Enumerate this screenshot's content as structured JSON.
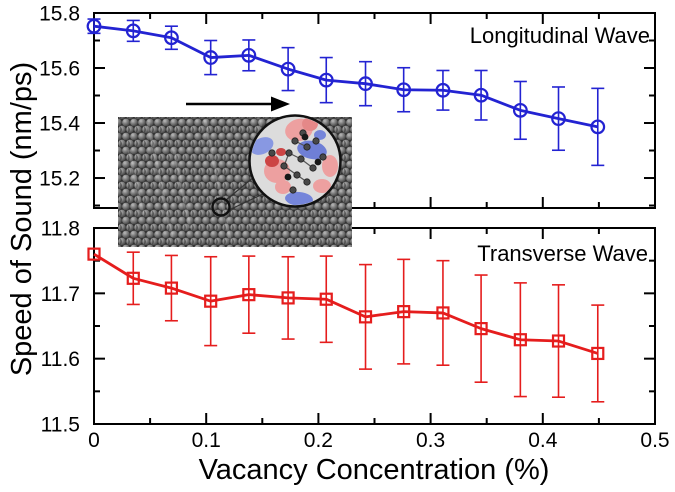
{
  "figure": {
    "background": "#ffffff",
    "axis_color": "#000000"
  },
  "chart_data": {
    "type": "line",
    "title": "",
    "xlabel": "Vacancy Concentration (%)",
    "ylabel": "Speed of Sound (nm/ps)",
    "xlim": [
      0,
      0.5
    ],
    "x_ticks": {
      "major": [
        0,
        0.1,
        0.2,
        0.3,
        0.4,
        0.5
      ],
      "labels": [
        "0",
        "0.1",
        "0.2",
        "0.3",
        "0.4",
        "0.5"
      ],
      "minor": [
        0.05,
        0.15,
        0.25,
        0.35,
        0.45
      ]
    },
    "x": [
      0,
      0.035,
      0.069,
      0.104,
      0.138,
      0.173,
      0.207,
      0.242,
      0.276,
      0.311,
      0.345,
      0.38,
      0.414,
      0.449
    ],
    "panels": [
      {
        "label": "Longitudinal Wave",
        "marker": "circle",
        "color": "#2323d2",
        "ylim": [
          15.091,
          15.8
        ],
        "y_ticks": {
          "major": [
            15.8,
            15.6,
            15.4,
            15.2
          ],
          "labels": [
            "15.8",
            "15.6",
            "15.4",
            "15.2"
          ],
          "minor": [
            15.7,
            15.5,
            15.3,
            15.1
          ]
        },
        "y": [
          15.752,
          15.735,
          15.71,
          15.638,
          15.646,
          15.596,
          15.556,
          15.543,
          15.521,
          15.519,
          15.501,
          15.446,
          15.416,
          15.386
        ],
        "yerr": [
          0.026,
          0.038,
          0.042,
          0.062,
          0.056,
          0.078,
          0.082,
          0.08,
          0.08,
          0.072,
          0.09,
          0.105,
          0.115,
          0.14
        ]
      },
      {
        "label": "Transverse Wave",
        "marker": "square",
        "color": "#e51d1d",
        "ylim": [
          11.5,
          11.8
        ],
        "y_ticks": {
          "major": [
            11.8,
            11.7,
            11.6,
            11.5
          ],
          "labels": [
            "11.8",
            "11.7",
            "11.6",
            "11.5"
          ],
          "minor": [
            11.75,
            11.65,
            11.55
          ]
        },
        "y": [
          11.76,
          11.723,
          11.708,
          11.688,
          11.698,
          11.693,
          11.691,
          11.664,
          11.672,
          11.67,
          11.646,
          11.629,
          11.627,
          11.608
        ],
        "yerr": [
          0,
          0.04,
          0.05,
          0.068,
          0.059,
          0.063,
          0.066,
          0.08,
          0.08,
          0.08,
          0.082,
          0.087,
          0.086,
          0.074
        ]
      }
    ],
    "inset": {
      "kind": "simulation-snapshot",
      "content": "gray atom lattice with vacancy circled and magnified charge-density view",
      "arrow_direction": "right"
    }
  }
}
